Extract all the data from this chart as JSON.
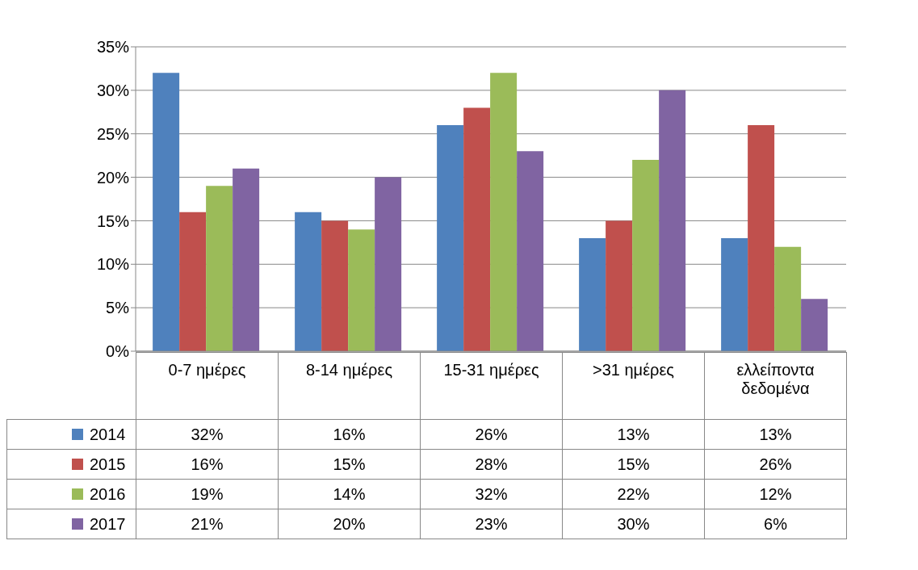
{
  "chart_data": {
    "type": "bar",
    "categories": [
      "0-7 ημέρες",
      "8-14 ημέρες",
      "15-31 ημέρες",
      ">31 ημέρες",
      "ελλείποντα δεδομένα"
    ],
    "series": [
      {
        "name": "2014",
        "color": "#4f81bd",
        "values": [
          32,
          16,
          26,
          13,
          13
        ],
        "value_labels": [
          "32%",
          "16%",
          "26%",
          "13%",
          "13%"
        ]
      },
      {
        "name": "2015",
        "color": "#c0504d",
        "values": [
          16,
          15,
          28,
          15,
          26
        ],
        "value_labels": [
          "16%",
          "15%",
          "28%",
          "15%",
          "26%"
        ]
      },
      {
        "name": "2016",
        "color": "#9bbb59",
        "values": [
          19,
          14,
          32,
          22,
          12
        ],
        "value_labels": [
          "19%",
          "14%",
          "32%",
          "22%",
          "12%"
        ]
      },
      {
        "name": "2017",
        "color": "#8064a2",
        "values": [
          21,
          20,
          23,
          30,
          6
        ],
        "value_labels": [
          "21%",
          "20%",
          "23%",
          "30%",
          "6%"
        ]
      }
    ],
    "ylim": [
      0,
      35
    ],
    "yticks": [
      {
        "value": 0,
        "label": "0%"
      },
      {
        "value": 5,
        "label": "5%"
      },
      {
        "value": 10,
        "label": "10%"
      },
      {
        "value": 15,
        "label": "15%"
      },
      {
        "value": 20,
        "label": "20%"
      },
      {
        "value": 25,
        "label": "25%"
      },
      {
        "value": 30,
        "label": "30%"
      },
      {
        "value": 35,
        "label": "35%"
      }
    ],
    "grid": "y",
    "legend": "bottom"
  }
}
